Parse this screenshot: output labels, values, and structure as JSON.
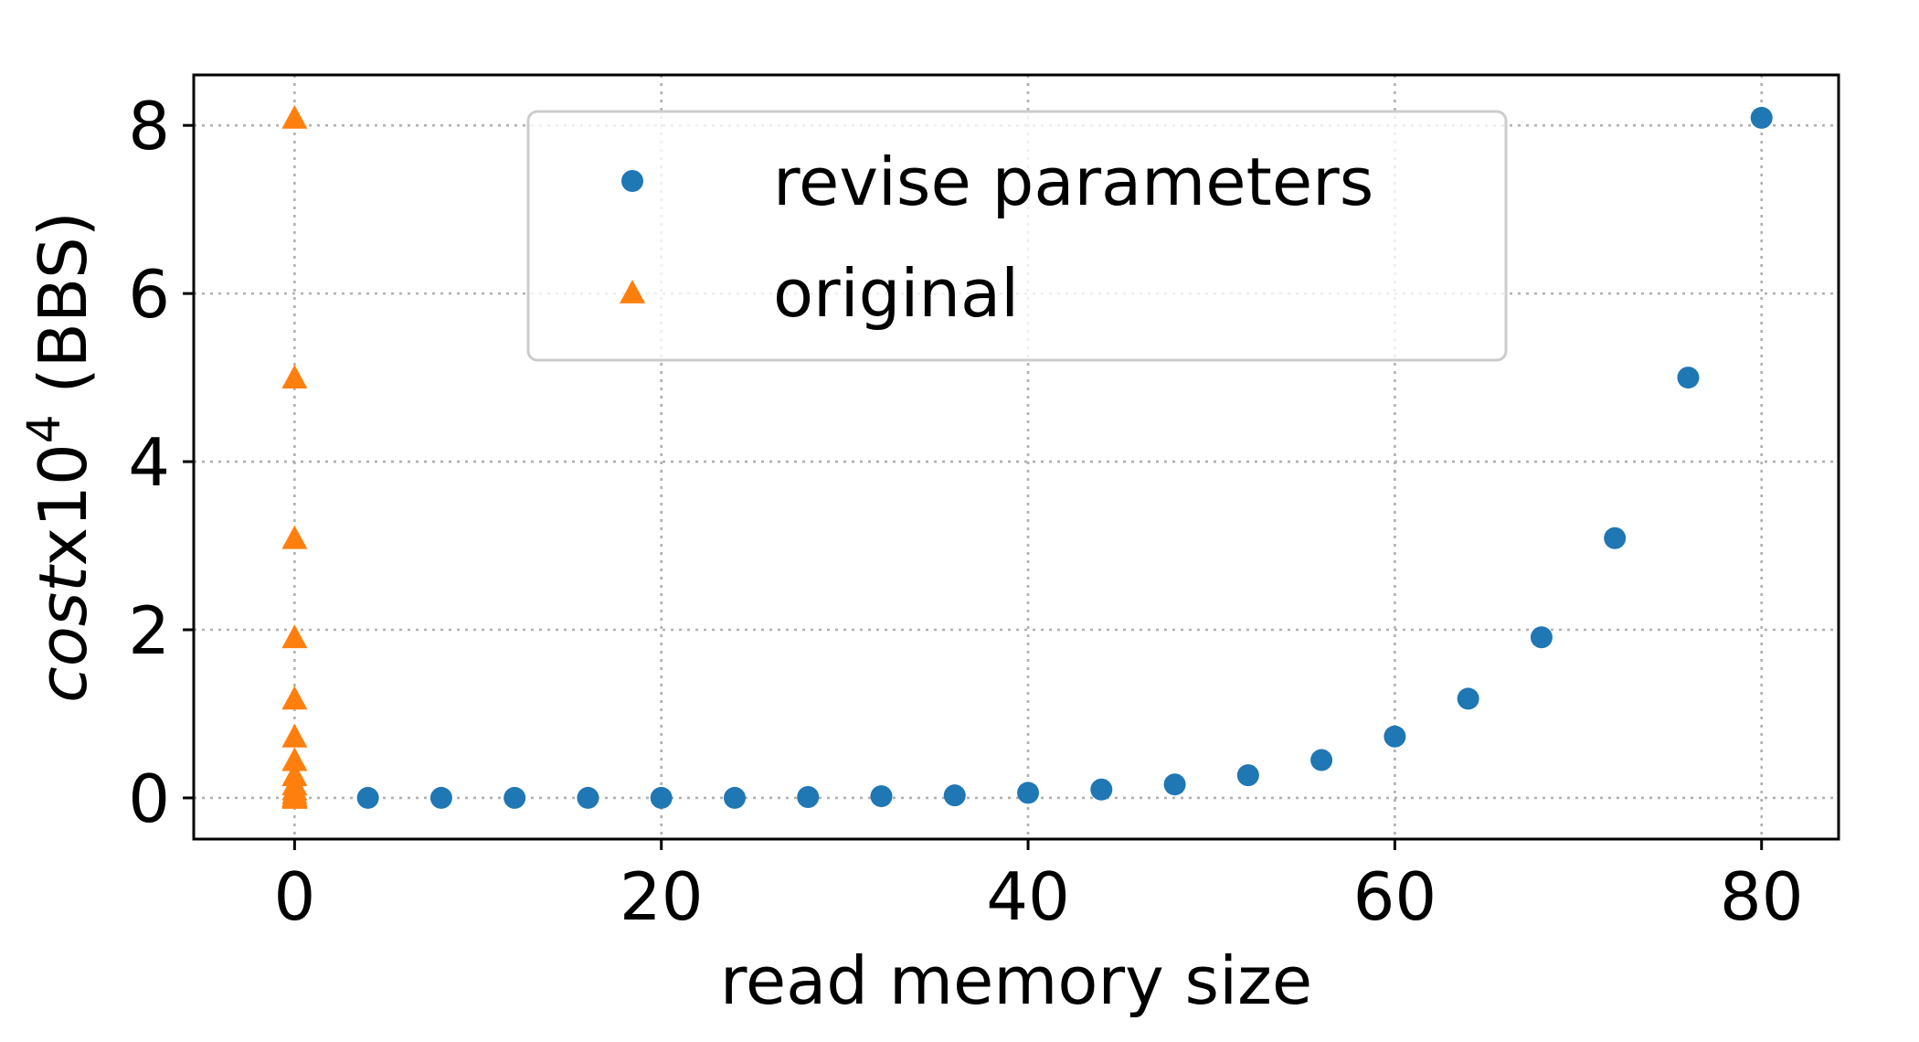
{
  "chart_data": {
    "type": "scatter",
    "xlabel": "read memory size",
    "ylabel": {
      "base": "cost",
      "mult": "x10",
      "exp": "4",
      "suffix": " (BBS)"
    },
    "xlim": [
      -5.5,
      84.2
    ],
    "ylim": [
      -0.49,
      8.6
    ],
    "xticks": [
      0,
      20,
      40,
      60,
      80
    ],
    "yticks": [
      0,
      2,
      4,
      6,
      8
    ],
    "grid": true,
    "legend_position": "upper-center",
    "series": [
      {
        "name": "revise parameters",
        "marker": "circle",
        "color": "#1f77b4",
        "points": [
          [
            4,
            0.0
          ],
          [
            8,
            0.0
          ],
          [
            12,
            0.0
          ],
          [
            16,
            0.0
          ],
          [
            20,
            0.0
          ],
          [
            24,
            0.0
          ],
          [
            28,
            0.01
          ],
          [
            32,
            0.02
          ],
          [
            36,
            0.03
          ],
          [
            40,
            0.06
          ],
          [
            44,
            0.1
          ],
          [
            48,
            0.16
          ],
          [
            52,
            0.27
          ],
          [
            56,
            0.45
          ],
          [
            60,
            0.73
          ],
          [
            64,
            1.18
          ],
          [
            68,
            1.91
          ],
          [
            72,
            3.09
          ],
          [
            76,
            5.0
          ],
          [
            80,
            8.09
          ]
        ]
      },
      {
        "name": "original",
        "marker": "triangle",
        "color": "#ff7f0e",
        "points": [
          [
            0,
            0.0
          ],
          [
            0,
            0.01
          ],
          [
            0,
            0.02
          ],
          [
            0,
            0.03
          ],
          [
            0,
            0.06
          ],
          [
            0,
            0.1
          ],
          [
            0,
            0.16
          ],
          [
            0,
            0.27
          ],
          [
            0,
            0.45
          ],
          [
            0,
            0.73
          ],
          [
            0,
            1.18
          ],
          [
            0,
            1.91
          ],
          [
            0,
            3.09
          ],
          [
            0,
            5.0
          ],
          [
            0,
            8.09
          ]
        ]
      }
    ]
  }
}
